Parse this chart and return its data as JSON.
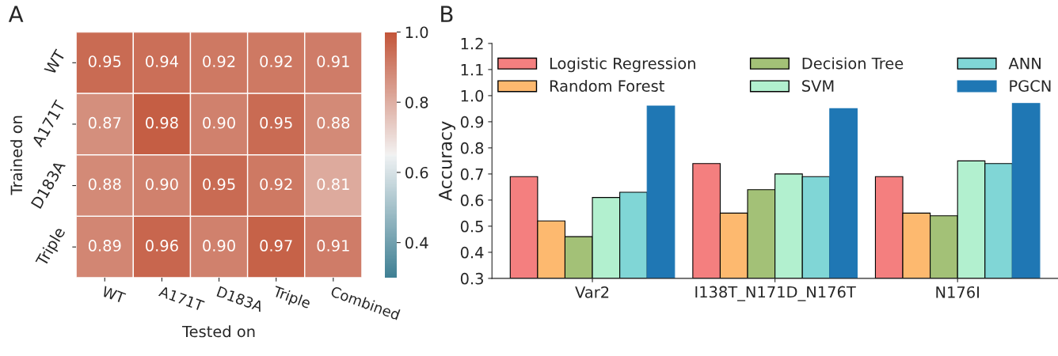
{
  "chart_data": [
    {
      "type": "heatmap",
      "title": "A",
      "xlabel": "Tested on",
      "ylabel": "Trained on",
      "categories": [
        "WT",
        "A171T",
        "D183A",
        "Triple",
        "Combined"
      ],
      "y_categories": [
        "WT",
        "A171T",
        "D183A",
        "Triple"
      ],
      "cells": [
        [
          0.95,
          0.94,
          0.92,
          0.92,
          0.91
        ],
        [
          0.87,
          0.98,
          0.9,
          0.95,
          0.88
        ],
        [
          0.88,
          0.9,
          0.95,
          0.92,
          0.81
        ],
        [
          0.89,
          0.96,
          0.9,
          0.97,
          0.91
        ]
      ],
      "cell_labels": [
        [
          "0.95",
          "0.94",
          "0.92",
          "0.92",
          "0.91"
        ],
        [
          "0.87",
          "0.98",
          "0.90",
          "0.95",
          "0.88"
        ],
        [
          "0.88",
          "0.90",
          "0.95",
          "0.92",
          "0.81"
        ],
        [
          "0.89",
          "0.96",
          "0.90",
          "0.97",
          "0.91"
        ]
      ],
      "clim": [
        0.3,
        1.0
      ],
      "cticks": [
        {
          "value": 0.4,
          "label": "0.4"
        },
        {
          "value": 0.6,
          "label": "0.6"
        },
        {
          "value": 0.8,
          "label": "0.8"
        },
        {
          "value": 1.0,
          "label": "1.0"
        }
      ]
    },
    {
      "type": "bar",
      "title": "B",
      "ylabel": "Accuracy",
      "categories": [
        "Var2",
        "I138T_N171D_N176T",
        "N176I"
      ],
      "series": [
        {
          "name": "Logistic Regression",
          "color": "#f47f7f",
          "values": [
            0.69,
            0.74,
            0.69
          ]
        },
        {
          "name": "Random Forest",
          "color": "#fdb96f",
          "values": [
            0.52,
            0.55,
            0.55
          ]
        },
        {
          "name": "Decision Tree",
          "color": "#a3c177",
          "values": [
            0.46,
            0.64,
            0.54
          ]
        },
        {
          "name": "SVM",
          "color": "#b2f0cf",
          "values": [
            0.61,
            0.7,
            0.75
          ]
        },
        {
          "name": "ANN",
          "color": "#80d6d6",
          "values": [
            0.63,
            0.69,
            0.74
          ]
        },
        {
          "name": "PGCN",
          "color": "#1f77b4",
          "values": [
            0.96,
            0.95,
            0.97
          ]
        }
      ],
      "ylim": [
        0.3,
        1.2
      ],
      "yticks": [
        0.3,
        0.4,
        0.5,
        0.6,
        0.7,
        0.8,
        0.9,
        {
          "value": 1.0,
          "label": "1.0"
        },
        1.1,
        1.2
      ],
      "legend": "top",
      "grid": false
    }
  ]
}
